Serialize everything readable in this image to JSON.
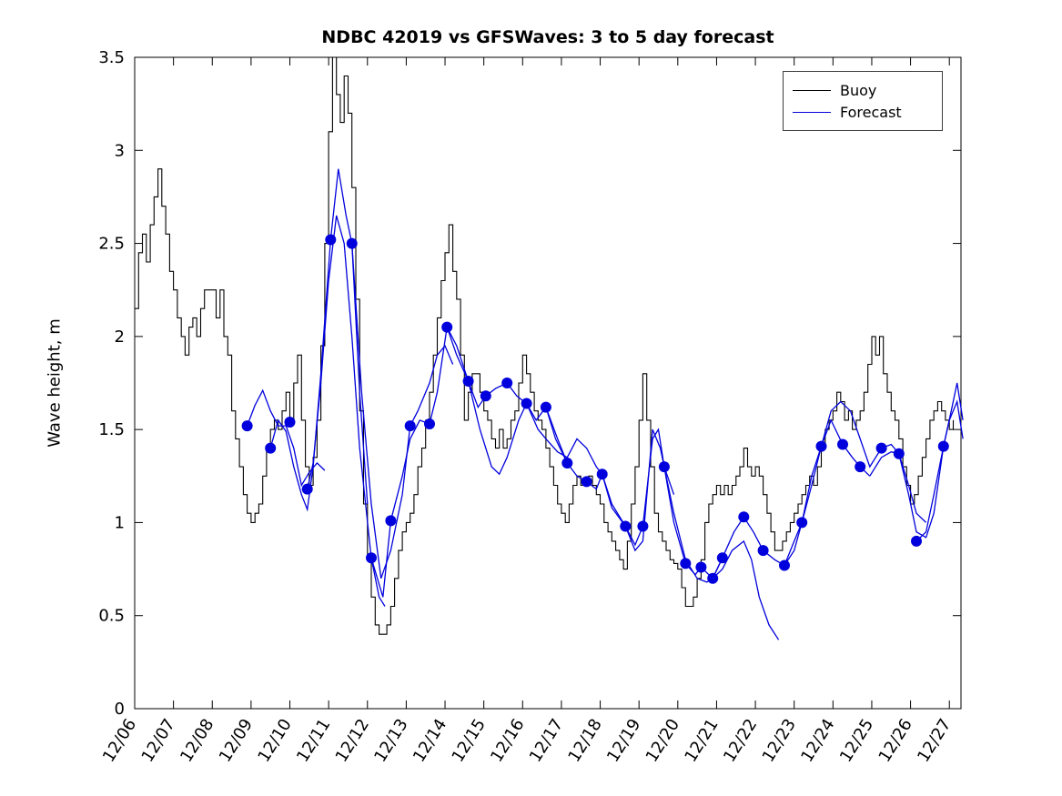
{
  "figure": {
    "background": "#ffffff"
  },
  "chart_data": {
    "type": "line",
    "title": "NDBC 42019 vs GFSWaves: 3 to 5 day forecast",
    "xlabel": "",
    "ylabel": "Wave height, m",
    "ylim": [
      0,
      3.5
    ],
    "xlim": [
      0,
      21.3
    ],
    "grid": false,
    "legend_position": "upper-right",
    "yticks": [
      0,
      0.5,
      1,
      1.5,
      2,
      2.5,
      3,
      3.5
    ],
    "ytick_labels": [
      "0",
      "0.5",
      "1",
      "1.5",
      "2",
      "2.5",
      "3",
      "3.5"
    ],
    "xticks": [
      0,
      1,
      2,
      3,
      4,
      5,
      6,
      7,
      8,
      9,
      10,
      11,
      12,
      13,
      14,
      15,
      16,
      17,
      18,
      19,
      20,
      21
    ],
    "xtick_labels": [
      "12/06",
      "12/07",
      "12/08",
      "12/09",
      "12/10",
      "12/11",
      "12/12",
      "12/13",
      "12/14",
      "12/15",
      "12/16",
      "12/17",
      "12/18",
      "12/19",
      "12/20",
      "12/21",
      "12/22",
      "12/23",
      "12/24",
      "12/25",
      "12/26",
      "12/27"
    ],
    "legend": [
      {
        "label": "Buoy",
        "color": "#000000"
      },
      {
        "label": "Forecast",
        "color": "#0000dd"
      }
    ],
    "buoy": {
      "name": "Buoy",
      "color": "#000000",
      "x_unit": "days_from_12/06",
      "x_start": 0,
      "x_step": 0.1,
      "values": [
        2.15,
        2.45,
        2.55,
        2.4,
        2.6,
        2.75,
        2.9,
        2.7,
        2.55,
        2.35,
        2.25,
        2.1,
        2.0,
        1.9,
        2.05,
        2.1,
        2.0,
        2.15,
        2.25,
        2.25,
        2.25,
        2.1,
        2.25,
        2.0,
        1.9,
        1.6,
        1.45,
        1.3,
        1.15,
        1.05,
        1.0,
        1.05,
        1.1,
        1.25,
        1.4,
        1.5,
        1.55,
        1.5,
        1.6,
        1.7,
        1.55,
        1.75,
        1.9,
        1.55,
        1.3,
        1.2,
        1.35,
        1.55,
        1.95,
        2.5,
        3.1,
        3.5,
        3.3,
        3.15,
        3.4,
        3.2,
        2.8,
        2.2,
        1.6,
        1.1,
        0.8,
        0.6,
        0.45,
        0.4,
        0.4,
        0.45,
        0.55,
        0.7,
        0.85,
        0.95,
        1.0,
        1.05,
        1.15,
        1.3,
        1.4,
        1.55,
        1.7,
        1.9,
        2.1,
        2.3,
        2.45,
        2.6,
        2.35,
        2.2,
        1.9,
        1.55,
        1.7,
        1.8,
        1.8,
        1.7,
        1.6,
        1.55,
        1.45,
        1.4,
        1.5,
        1.4,
        1.45,
        1.55,
        1.6,
        1.75,
        1.9,
        1.8,
        1.7,
        1.6,
        1.55,
        1.5,
        1.4,
        1.3,
        1.2,
        1.1,
        1.05,
        1.0,
        1.1,
        1.2,
        1.25,
        1.2,
        1.2,
        1.25,
        1.2,
        1.15,
        1.1,
        1.0,
        0.95,
        0.9,
        0.85,
        0.8,
        0.75,
        0.9,
        1.1,
        1.3,
        1.55,
        1.8,
        1.55,
        1.3,
        1.05,
        0.95,
        0.9,
        0.85,
        0.8,
        0.78,
        0.75,
        0.65,
        0.55,
        0.55,
        0.6,
        0.7,
        0.8,
        1.0,
        1.1,
        1.15,
        1.2,
        1.15,
        1.2,
        1.15,
        1.2,
        1.25,
        1.3,
        1.4,
        1.3,
        1.25,
        1.3,
        1.25,
        1.15,
        1.05,
        0.95,
        0.85,
        0.85,
        0.9,
        0.95,
        1.0,
        1.05,
        1.1,
        1.15,
        1.2,
        1.25,
        1.2,
        1.3,
        1.4,
        1.5,
        1.55,
        1.6,
        1.7,
        1.65,
        1.55,
        1.6,
        1.5,
        1.55,
        1.6,
        1.7,
        1.85,
        2.0,
        1.9,
        2.0,
        1.8,
        1.7,
        1.6,
        1.55,
        1.45,
        1.3,
        1.2,
        1.1,
        1.15,
        1.25,
        1.35,
        1.45,
        1.55,
        1.6,
        1.65,
        1.6,
        1.55,
        1.5,
        1.55
      ]
    },
    "forecast": {
      "name": "Forecast",
      "color": "#0000dd",
      "x_unit": "days_from_12/06",
      "segments": [
        [
          [
            2.9,
            1.52
          ],
          [
            3.1,
            1.63
          ],
          [
            3.3,
            1.71
          ],
          [
            3.5,
            1.6
          ],
          [
            3.7,
            1.52
          ],
          [
            3.9,
            1.52
          ],
          [
            4.1,
            1.4
          ],
          [
            4.3,
            1.2
          ],
          [
            4.5,
            1.27
          ],
          [
            4.7,
            1.32
          ],
          [
            4.9,
            1.28
          ]
        ],
        [
          [
            3.5,
            1.4
          ],
          [
            3.7,
            1.55
          ],
          [
            3.9,
            1.49
          ],
          [
            4.1,
            1.3
          ],
          [
            4.3,
            1.15
          ],
          [
            4.45,
            1.07
          ],
          [
            4.6,
            1.3
          ],
          [
            4.8,
            1.8
          ],
          [
            5.05,
            2.52
          ],
          [
            5.25,
            2.9
          ],
          [
            5.45,
            2.65
          ],
          [
            5.6,
            2.5
          ],
          [
            5.8,
            1.7
          ],
          [
            6.0,
            1.1
          ]
        ],
        [
          [
            4.45,
            1.18
          ],
          [
            4.6,
            1.32
          ],
          [
            4.8,
            1.75
          ],
          [
            5.0,
            2.3
          ],
          [
            5.2,
            2.65
          ],
          [
            5.4,
            2.5
          ],
          [
            5.6,
            2.0
          ],
          [
            5.8,
            1.4
          ],
          [
            6.1,
            0.81
          ],
          [
            6.3,
            0.6
          ],
          [
            6.45,
            0.55
          ]
        ],
        [
          [
            5.6,
            2.5
          ],
          [
            5.85,
            1.7
          ],
          [
            6.1,
            1.1
          ],
          [
            6.35,
            0.7
          ],
          [
            6.6,
            0.85
          ],
          [
            6.9,
            1.15
          ],
          [
            7.1,
            1.52
          ],
          [
            7.3,
            1.6
          ],
          [
            7.6,
            1.75
          ],
          [
            7.8,
            1.9
          ],
          [
            8.0,
            1.95
          ],
          [
            8.2,
            1.85
          ]
        ],
        [
          [
            6.1,
            0.81
          ],
          [
            6.4,
            0.6
          ],
          [
            6.6,
            1.01
          ],
          [
            6.9,
            1.25
          ],
          [
            7.1,
            1.45
          ],
          [
            7.35,
            1.55
          ],
          [
            7.6,
            1.53
          ],
          [
            7.8,
            1.7
          ],
          [
            8.05,
            2.05
          ],
          [
            8.3,
            1.95
          ],
          [
            8.6,
            1.76
          ]
        ],
        [
          [
            8.05,
            2.05
          ],
          [
            8.3,
            1.9
          ],
          [
            8.6,
            1.76
          ],
          [
            8.85,
            1.62
          ],
          [
            9.05,
            1.68
          ],
          [
            9.3,
            1.72
          ],
          [
            9.6,
            1.75
          ],
          [
            9.85,
            1.68
          ],
          [
            10.1,
            1.64
          ],
          [
            10.35,
            1.55
          ],
          [
            10.6,
            1.62
          ],
          [
            10.85,
            1.45
          ],
          [
            11.15,
            1.32
          ]
        ],
        [
          [
            8.6,
            1.76
          ],
          [
            8.9,
            1.5
          ],
          [
            9.2,
            1.3
          ],
          [
            9.4,
            1.26
          ],
          [
            9.6,
            1.35
          ],
          [
            9.9,
            1.55
          ],
          [
            10.1,
            1.64
          ],
          [
            10.4,
            1.5
          ],
          [
            10.6,
            1.45
          ],
          [
            10.9,
            1.38
          ],
          [
            11.15,
            1.35
          ],
          [
            11.4,
            1.45
          ],
          [
            11.65,
            1.4
          ],
          [
            11.9,
            1.3
          ],
          [
            12.05,
            1.26
          ]
        ],
        [
          [
            10.6,
            1.62
          ],
          [
            10.9,
            1.45
          ],
          [
            11.15,
            1.32
          ],
          [
            11.4,
            1.25
          ],
          [
            11.65,
            1.22
          ],
          [
            11.9,
            1.18
          ],
          [
            12.05,
            1.26
          ],
          [
            12.3,
            1.1
          ],
          [
            12.65,
            0.98
          ],
          [
            12.9,
            0.88
          ],
          [
            13.1,
            0.98
          ],
          [
            13.35,
            1.45
          ],
          [
            13.5,
            1.5
          ],
          [
            13.65,
            1.3
          ],
          [
            13.9,
            1.15
          ]
        ],
        [
          [
            12.05,
            1.26
          ],
          [
            12.3,
            1.08
          ],
          [
            12.65,
            0.98
          ],
          [
            12.9,
            0.85
          ],
          [
            13.1,
            0.9
          ],
          [
            13.35,
            1.5
          ],
          [
            13.55,
            1.4
          ],
          [
            13.65,
            1.3
          ],
          [
            13.9,
            1.0
          ],
          [
            14.2,
            0.78
          ],
          [
            14.45,
            0.72
          ],
          [
            14.6,
            0.76
          ],
          [
            14.9,
            0.7
          ],
          [
            15.15,
            0.81
          ]
        ],
        [
          [
            13.65,
            1.3
          ],
          [
            13.9,
            1.05
          ],
          [
            14.2,
            0.8
          ],
          [
            14.5,
            0.7
          ],
          [
            14.75,
            0.68
          ],
          [
            14.9,
            0.7
          ],
          [
            15.15,
            0.75
          ],
          [
            15.4,
            0.85
          ],
          [
            15.7,
            0.9
          ],
          [
            15.9,
            0.8
          ],
          [
            16.1,
            0.6
          ],
          [
            16.35,
            0.45
          ],
          [
            16.6,
            0.37
          ]
        ],
        [
          [
            14.9,
            0.7
          ],
          [
            15.15,
            0.81
          ],
          [
            15.45,
            0.95
          ],
          [
            15.7,
            1.03
          ],
          [
            15.95,
            0.95
          ],
          [
            16.2,
            0.85
          ],
          [
            16.5,
            0.8
          ],
          [
            16.75,
            0.77
          ],
          [
            17.0,
            0.85
          ],
          [
            17.2,
            1.0
          ],
          [
            17.45,
            1.2
          ],
          [
            17.7,
            1.41
          ]
        ],
        [
          [
            16.75,
            0.77
          ],
          [
            17.0,
            0.9
          ],
          [
            17.2,
            1.0
          ],
          [
            17.45,
            1.25
          ],
          [
            17.7,
            1.41
          ],
          [
            17.95,
            1.55
          ],
          [
            18.25,
            1.42
          ],
          [
            18.5,
            1.35
          ],
          [
            18.7,
            1.3
          ],
          [
            18.95,
            1.25
          ]
        ],
        [
          [
            17.7,
            1.41
          ],
          [
            17.95,
            1.6
          ],
          [
            18.2,
            1.65
          ],
          [
            18.45,
            1.6
          ],
          [
            18.7,
            1.45
          ],
          [
            18.95,
            1.3
          ],
          [
            19.25,
            1.4
          ],
          [
            19.5,
            1.42
          ],
          [
            19.7,
            1.37
          ],
          [
            19.95,
            1.2
          ],
          [
            20.15,
            1.05
          ],
          [
            20.4,
            1.0
          ]
        ],
        [
          [
            18.95,
            1.25
          ],
          [
            19.25,
            1.35
          ],
          [
            19.5,
            1.38
          ],
          [
            19.7,
            1.37
          ],
          [
            19.95,
            1.15
          ],
          [
            20.15,
            0.95
          ],
          [
            20.4,
            0.92
          ],
          [
            20.6,
            1.05
          ],
          [
            20.85,
            1.41
          ],
          [
            21.05,
            1.6
          ],
          [
            21.2,
            1.75
          ],
          [
            21.35,
            1.55
          ]
        ],
        [
          [
            20.15,
            0.9
          ],
          [
            20.4,
            0.95
          ],
          [
            20.6,
            1.15
          ],
          [
            20.85,
            1.41
          ],
          [
            21.0,
            1.55
          ],
          [
            21.2,
            1.65
          ],
          [
            21.35,
            1.45
          ]
        ]
      ],
      "markers": [
        [
          2.9,
          1.52
        ],
        [
          3.5,
          1.4
        ],
        [
          4.0,
          1.54
        ],
        [
          4.45,
          1.18
        ],
        [
          5.05,
          2.52
        ],
        [
          5.6,
          2.5
        ],
        [
          6.1,
          0.81
        ],
        [
          6.6,
          1.01
        ],
        [
          7.1,
          1.52
        ],
        [
          7.6,
          1.53
        ],
        [
          8.05,
          2.05
        ],
        [
          8.6,
          1.76
        ],
        [
          9.05,
          1.68
        ],
        [
          9.6,
          1.75
        ],
        [
          10.1,
          1.64
        ],
        [
          10.6,
          1.62
        ],
        [
          11.15,
          1.32
        ],
        [
          11.65,
          1.22
        ],
        [
          12.05,
          1.26
        ],
        [
          12.65,
          0.98
        ],
        [
          13.1,
          0.98
        ],
        [
          13.65,
          1.3
        ],
        [
          14.2,
          0.78
        ],
        [
          14.6,
          0.76
        ],
        [
          14.9,
          0.7
        ],
        [
          15.15,
          0.81
        ],
        [
          15.7,
          1.03
        ],
        [
          16.2,
          0.85
        ],
        [
          16.75,
          0.77
        ],
        [
          17.2,
          1.0
        ],
        [
          17.7,
          1.41
        ],
        [
          18.25,
          1.42
        ],
        [
          18.7,
          1.3
        ],
        [
          19.25,
          1.4
        ],
        [
          19.7,
          1.37
        ],
        [
          20.15,
          0.9
        ],
        [
          20.85,
          1.41
        ]
      ]
    }
  }
}
